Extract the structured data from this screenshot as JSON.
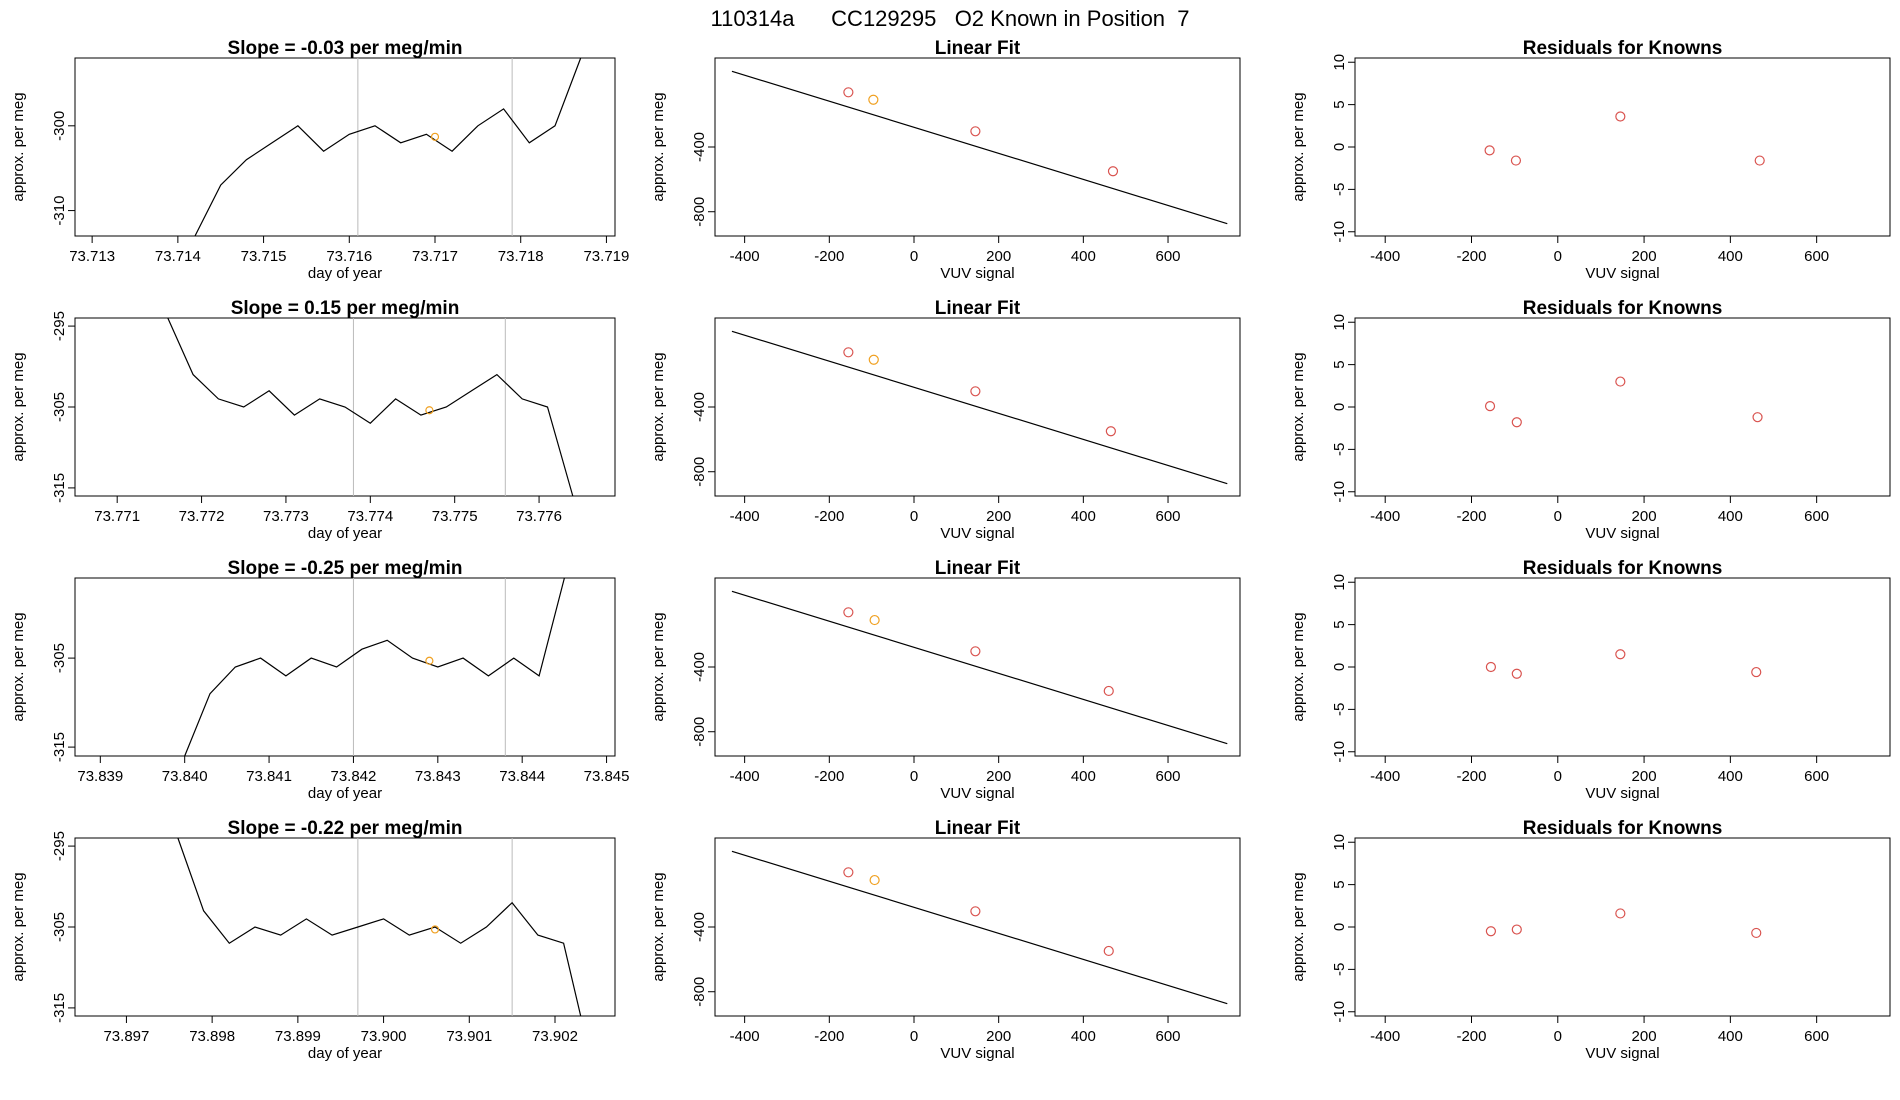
{
  "page_title": "110314a      CC129295   O2 Known in Position  7",
  "colors": {
    "line": "#000000",
    "vertical_marker": "#bbbbbb",
    "known_point": "#d9534f",
    "highlight_point": "#f0a020"
  },
  "chart_data": [
    {
      "type": "line",
      "title": "Slope =  -0.03  per meg/min",
      "xlabel": "day of year",
      "ylabel": "approx. per meg",
      "xlim": [
        73.7128,
        73.7191
      ],
      "ylim": [
        -313,
        -292
      ],
      "xticks": [
        73.713,
        73.714,
        73.715,
        73.716,
        73.717,
        73.718,
        73.719
      ],
      "xtick_labels": [
        "73.713",
        "73.714",
        "73.715",
        "73.716",
        "73.717",
        "73.718",
        "73.719"
      ],
      "yticks": [
        -310,
        -300
      ],
      "ytick_labels": [
        "-310",
        "-300"
      ],
      "vlines": [
        73.7161,
        73.7179
      ],
      "highlight_point": [
        73.717,
        -301.3
      ],
      "x": [
        73.7142,
        73.7145,
        73.7148,
        73.7151,
        73.7154,
        73.7157,
        73.716,
        73.7163,
        73.7166,
        73.7169,
        73.7172,
        73.7175,
        73.7178,
        73.7181,
        73.7184,
        73.7187
      ],
      "y": [
        -313,
        -307,
        -304,
        -302,
        -300,
        -303,
        -301,
        -300,
        -302,
        -301,
        -303,
        -300,
        -298,
        -302,
        -300,
        -292
      ]
    },
    {
      "type": "scatter",
      "title": "Linear Fit",
      "xlabel": "VUV signal",
      "ylabel": "approx. per meg",
      "xlim": [
        -470,
        770
      ],
      "ylim": [
        -950,
        150
      ],
      "xticks": [
        -400,
        -200,
        0,
        200,
        400,
        600
      ],
      "xtick_labels": [
        "-400",
        "-200",
        "0",
        "200",
        "400",
        "600"
      ],
      "yticks": [
        -800,
        -400
      ],
      "ytick_labels": [
        "-800",
        "-400"
      ],
      "fit_line": {
        "x": [
          -430,
          740
        ],
        "y": [
          68,
          -874
        ]
      },
      "points": {
        "x": [
          -155,
          -96,
          145,
          470
        ],
        "y": [
          -62,
          -108,
          -303,
          -550
        ]
      },
      "highlight_index": 1
    },
    {
      "type": "scatter",
      "title": "Residuals for Knowns",
      "xlabel": "VUV signal",
      "ylabel": "approx. per meg",
      "xlim": [
        -470,
        770
      ],
      "ylim": [
        -10.5,
        10.5
      ],
      "xticks": [
        -400,
        -200,
        0,
        200,
        400,
        600
      ],
      "xtick_labels": [
        "-400",
        "-200",
        "0",
        "200",
        "400",
        "600"
      ],
      "yticks": [
        -10,
        -5,
        0,
        5,
        10
      ],
      "ytick_labels": [
        "-10",
        "-5",
        "0",
        "5",
        "10"
      ],
      "points": {
        "x": [
          -158,
          -97,
          145,
          468
        ],
        "y": [
          -0.4,
          -1.6,
          3.6,
          -1.6
        ]
      }
    },
    {
      "type": "line",
      "title": "Slope =  0.15  per meg/min",
      "xlabel": "day of year",
      "ylabel": "approx. per meg",
      "xlim": [
        73.7705,
        73.7769
      ],
      "ylim": [
        -316,
        -294
      ],
      "xticks": [
        73.771,
        73.772,
        73.773,
        73.774,
        73.775,
        73.776
      ],
      "xtick_labels": [
        "73.771",
        "73.772",
        "73.773",
        "73.774",
        "73.775",
        "73.776"
      ],
      "yticks": [
        -315,
        -305,
        -295
      ],
      "ytick_labels": [
        "-315",
        "-305",
        "-295"
      ],
      "vlines": [
        73.7738,
        73.7756
      ],
      "highlight_point": [
        73.7747,
        -305.4
      ],
      "x": [
        73.7716,
        73.7719,
        73.7722,
        73.7725,
        73.7728,
        73.7731,
        73.7734,
        73.7737,
        73.774,
        73.7743,
        73.7746,
        73.7749,
        73.7752,
        73.7755,
        73.7758,
        73.7761,
        73.7764
      ],
      "y": [
        -294,
        -301,
        -304,
        -305,
        -303,
        -306,
        -304,
        -305,
        -307,
        -304,
        -306,
        -305,
        -303,
        -301,
        -304,
        -305,
        -316
      ]
    },
    {
      "type": "scatter",
      "title": "Linear Fit",
      "xlabel": "VUV signal",
      "ylabel": "approx. per meg",
      "xlim": [
        -470,
        770
      ],
      "ylim": [
        -950,
        150
      ],
      "xticks": [
        -400,
        -200,
        0,
        200,
        400,
        600
      ],
      "xtick_labels": [
        "-400",
        "-200",
        "0",
        "200",
        "400",
        "600"
      ],
      "yticks": [
        -800,
        -400
      ],
      "ytick_labels": [
        "-800",
        "-400"
      ],
      "fit_line": {
        "x": [
          -430,
          740
        ],
        "y": [
          68,
          -874
        ]
      },
      "points": {
        "x": [
          -155,
          -95,
          145,
          465
        ],
        "y": [
          -62,
          -108,
          -303,
          -550
        ]
      },
      "highlight_index": 1
    },
    {
      "type": "scatter",
      "title": "Residuals for Knowns",
      "xlabel": "VUV signal",
      "ylabel": "approx. per meg",
      "xlim": [
        -470,
        770
      ],
      "ylim": [
        -10.5,
        10.5
      ],
      "xticks": [
        -400,
        -200,
        0,
        200,
        400,
        600
      ],
      "xtick_labels": [
        "-400",
        "-200",
        "0",
        "200",
        "400",
        "600"
      ],
      "yticks": [
        -10,
        -5,
        0,
        5,
        10
      ],
      "ytick_labels": [
        "-10",
        "-5",
        "0",
        "5",
        "10"
      ],
      "points": {
        "x": [
          -157,
          -95,
          145,
          463
        ],
        "y": [
          0.1,
          -1.8,
          3.0,
          -1.2
        ]
      }
    },
    {
      "type": "line",
      "title": "Slope =  -0.25  per meg/min",
      "xlabel": "day of year",
      "ylabel": "approx. per meg",
      "xlim": [
        73.8387,
        73.8451
      ],
      "ylim": [
        -316,
        -296
      ],
      "xticks": [
        73.839,
        73.84,
        73.841,
        73.842,
        73.843,
        73.844,
        73.845
      ],
      "xtick_labels": [
        "73.839",
        "73.840",
        "73.841",
        "73.842",
        "73.843",
        "73.844",
        "73.845"
      ],
      "yticks": [
        -315,
        -305
      ],
      "ytick_labels": [
        "-315",
        "-305"
      ],
      "vlines": [
        73.842,
        73.8438
      ],
      "highlight_point": [
        73.8429,
        -305.3
      ],
      "x": [
        73.84,
        73.8403,
        73.8406,
        73.8409,
        73.8412,
        73.8415,
        73.8418,
        73.8421,
        73.8424,
        73.8427,
        73.843,
        73.8433,
        73.8436,
        73.8439,
        73.8442,
        73.8445
      ],
      "y": [
        -316,
        -309,
        -306,
        -305,
        -307,
        -305,
        -306,
        -304,
        -303,
        -305,
        -306,
        -305,
        -307,
        -305,
        -307,
        -296
      ]
    },
    {
      "type": "scatter",
      "title": "Linear Fit",
      "xlabel": "VUV signal",
      "ylabel": "approx. per meg",
      "xlim": [
        -470,
        770
      ],
      "ylim": [
        -950,
        150
      ],
      "xticks": [
        -400,
        -200,
        0,
        200,
        400,
        600
      ],
      "xtick_labels": [
        "-400",
        "-200",
        "0",
        "200",
        "400",
        "600"
      ],
      "yticks": [
        -800,
        -400
      ],
      "ytick_labels": [
        "-800",
        "-400"
      ],
      "fit_line": {
        "x": [
          -430,
          740
        ],
        "y": [
          68,
          -874
        ]
      },
      "points": {
        "x": [
          -155,
          -93,
          145,
          460
        ],
        "y": [
          -62,
          -110,
          -303,
          -548
        ]
      },
      "highlight_index": 1
    },
    {
      "type": "scatter",
      "title": "Residuals for Knowns",
      "xlabel": "VUV signal",
      "ylabel": "approx. per meg",
      "xlim": [
        -470,
        770
      ],
      "ylim": [
        -10.5,
        10.5
      ],
      "xticks": [
        -400,
        -200,
        0,
        200,
        400,
        600
      ],
      "xtick_labels": [
        "-400",
        "-200",
        "0",
        "200",
        "400",
        "600"
      ],
      "yticks": [
        -10,
        -5,
        0,
        5,
        10
      ],
      "ytick_labels": [
        "-10",
        "-5",
        "0",
        "5",
        "10"
      ],
      "points": {
        "x": [
          -155,
          -95,
          145,
          460
        ],
        "y": [
          0.0,
          -0.8,
          1.5,
          -0.6
        ]
      }
    },
    {
      "type": "line",
      "title": "Slope =  -0.22  per meg/min",
      "xlabel": "day of year",
      "ylabel": "approx. per meg",
      "xlim": [
        73.8964,
        73.9027
      ],
      "ylim": [
        -316,
        -294
      ],
      "xticks": [
        73.897,
        73.898,
        73.899,
        73.9,
        73.901,
        73.902
      ],
      "xtick_labels": [
        "73.897",
        "73.898",
        "73.899",
        "73.900",
        "73.901",
        "73.902"
      ],
      "yticks": [
        -315,
        -305,
        -295
      ],
      "ytick_labels": [
        "-315",
        "-305",
        "-295"
      ],
      "vlines": [
        73.8997,
        73.9015
      ],
      "highlight_point": [
        73.9006,
        -305.3
      ],
      "x": [
        73.8976,
        73.8979,
        73.8982,
        73.8985,
        73.8988,
        73.8991,
        73.8994,
        73.8997,
        73.9,
        73.9003,
        73.9006,
        73.9009,
        73.9012,
        73.9015,
        73.9018,
        73.9021,
        73.9023
      ],
      "y": [
        -294,
        -303,
        -307,
        -305,
        -306,
        -304,
        -306,
        -305,
        -304,
        -306,
        -305,
        -307,
        -305,
        -302,
        -306,
        -307,
        -316
      ]
    },
    {
      "type": "scatter",
      "title": "Linear Fit",
      "xlabel": "VUV signal",
      "ylabel": "approx. per meg",
      "xlim": [
        -470,
        770
      ],
      "ylim": [
        -950,
        150
      ],
      "xticks": [
        -400,
        -200,
        0,
        200,
        400,
        600
      ],
      "xtick_labels": [
        "-400",
        "-200",
        "0",
        "200",
        "400",
        "600"
      ],
      "yticks": [
        -800,
        -400
      ],
      "ytick_labels": [
        "-800",
        "-400"
      ],
      "fit_line": {
        "x": [
          -430,
          740
        ],
        "y": [
          68,
          -874
        ]
      },
      "points": {
        "x": [
          -155,
          -93,
          145,
          460
        ],
        "y": [
          -62,
          -110,
          -303,
          -548
        ]
      },
      "highlight_index": 1
    },
    {
      "type": "scatter",
      "title": "Residuals for Knowns",
      "xlabel": "VUV signal",
      "ylabel": "approx. per meg",
      "xlim": [
        -470,
        770
      ],
      "ylim": [
        -10.5,
        10.5
      ],
      "xticks": [
        -400,
        -200,
        0,
        200,
        400,
        600
      ],
      "xtick_labels": [
        "-400",
        "-200",
        "0",
        "200",
        "400",
        "600"
      ],
      "yticks": [
        -10,
        -5,
        0,
        5,
        10
      ],
      "ytick_labels": [
        "-10",
        "-5",
        "0",
        "5",
        "10"
      ],
      "points": {
        "x": [
          -155,
          -95,
          145,
          460
        ],
        "y": [
          -0.5,
          -0.3,
          1.6,
          -0.7
        ]
      }
    }
  ]
}
